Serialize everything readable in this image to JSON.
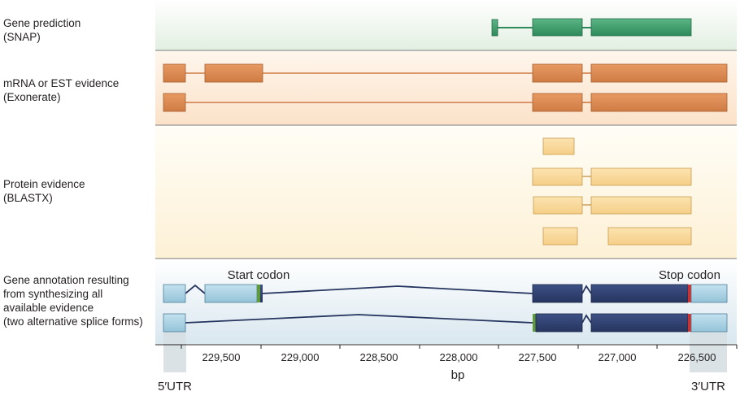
{
  "panels": {
    "gene_prediction": {
      "lines": [
        "Gene prediction",
        "(SNAP)"
      ]
    },
    "mrna_evidence": {
      "lines": [
        "mRNA or EST evidence",
        "(Exonerate)"
      ]
    },
    "protein_evidence": {
      "lines": [
        "Protein evidence",
        "(BLASTX)"
      ]
    },
    "gene_annotation": {
      "lines": [
        "Gene annotation resulting",
        "from synthesizing all",
        "available evidence",
        "(two alternative splice forms)"
      ]
    }
  },
  "annotations": {
    "start_codon": "Start codon",
    "stop_codon": "Stop codon",
    "utr5": "5′UTR",
    "utr3": "3′UTR"
  },
  "axis": {
    "label": "bp",
    "ticks": [
      "229,500",
      "229,000",
      "228,500",
      "228,000",
      "227,500",
      "227,000",
      "226,500"
    ]
  },
  "colors": {
    "snap": "#3d9a6b",
    "mrna": "#d9874f",
    "protein": "#f8d79a",
    "annotation_dark": "#2d3e6e",
    "annotation_light": "#a9d2e4",
    "start_marker": "#5c9a3c",
    "stop_marker": "#d0302f"
  }
}
